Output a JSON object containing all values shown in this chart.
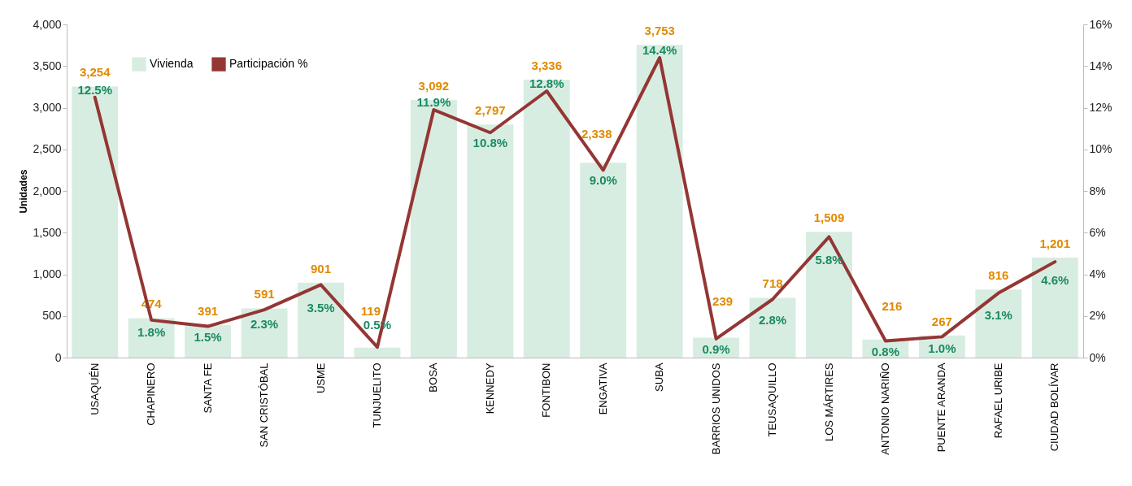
{
  "chart_data": {
    "type": "bar",
    "categories": [
      "USAQUÉN",
      "CHAPINERO",
      "SANTA FE",
      "SAN CRISTÓBAL",
      "USME",
      "TUNJUELITO",
      "BOSA",
      "KENNEDY",
      "FONTIBON",
      "ENGATIVA",
      "SUBA",
      "BARRIOS UNIDOS",
      "TEUSAQUILLO",
      "LOS MÁRTIRES",
      "ANTONIO NARIÑO",
      "PUENTE ARANDA",
      "RAFAEL URIBE",
      "CIUDAD BOLÍVAR"
    ],
    "ylabel": "Unidades",
    "ylim": [
      0,
      4000
    ],
    "yticks": [
      {
        "value": 0,
        "label": "0"
      },
      {
        "value": 500,
        "label": "500"
      },
      {
        "value": 1000,
        "label": "1,000"
      },
      {
        "value": 1500,
        "label": "1,500"
      },
      {
        "value": 2000,
        "label": "2,000"
      },
      {
        "value": 2500,
        "label": "2,500"
      },
      {
        "value": 3000,
        "label": "3,000"
      },
      {
        "value": 3500,
        "label": "3,500"
      },
      {
        "value": 4000,
        "label": "4,000"
      }
    ],
    "y2lim": [
      0,
      16
    ],
    "y2ticks": [
      {
        "value": 0,
        "label": "0%"
      },
      {
        "value": 2,
        "label": "2%"
      },
      {
        "value": 4,
        "label": "4%"
      },
      {
        "value": 6,
        "label": "6%"
      },
      {
        "value": 8,
        "label": "8%"
      },
      {
        "value": 10,
        "label": "10%"
      },
      {
        "value": 12,
        "label": "12%"
      },
      {
        "value": 14,
        "label": "14%"
      },
      {
        "value": 16,
        "label": "16%"
      }
    ],
    "legend": "top left",
    "grid": false,
    "series": [
      {
        "name": "Vivienda",
        "color": "#d8ede2",
        "values": [
          3254,
          474,
          391,
          591,
          901,
          119,
          3092,
          2797,
          3336,
          2338,
          3753,
          239,
          718,
          1509,
          216,
          267,
          816,
          1201
        ],
        "value_labels": [
          "3,254",
          "474",
          "391",
          "591",
          "901",
          "119",
          "3,092",
          "2,797",
          "3,336",
          "2,338",
          "3,753",
          "239",
          "718",
          "1,509",
          "216",
          "267",
          "816",
          "1,201"
        ]
      },
      {
        "name": "Participación %",
        "type": "line",
        "axis": "y2",
        "color": "#943634",
        "values": [
          12.5,
          1.8,
          1.5,
          2.3,
          3.5,
          0.5,
          11.9,
          10.8,
          12.8,
          9.0,
          14.4,
          0.9,
          2.8,
          5.8,
          0.8,
          1.0,
          3.1,
          4.6
        ],
        "value_labels": [
          "12.5%",
          "1.8%",
          "1.5%",
          "2.3%",
          "3.5%",
          "0.5%",
          "11.9%",
          "10.8%",
          "12.8%",
          "9.0%",
          "14.4%",
          "0.9%",
          "2.8%",
          "5.8%",
          "0.8%",
          "1.0%",
          "3.1%",
          "4.6%"
        ]
      }
    ]
  }
}
